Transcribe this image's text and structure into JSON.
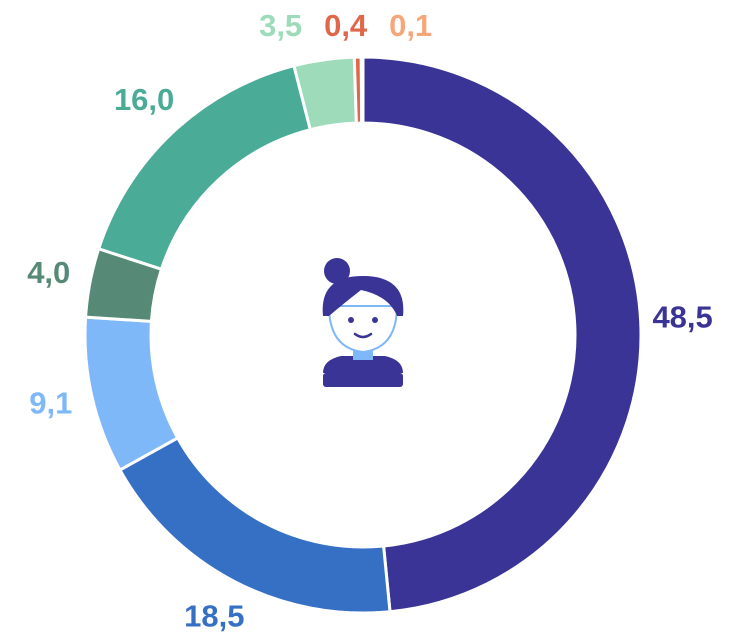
{
  "chart_data": {
    "type": "donut",
    "values": [
      48.5,
      18.5,
      9.1,
      4.0,
      16.0,
      3.5,
      0.4,
      0.1
    ],
    "value_labels": [
      "48,5",
      "18,5",
      "9,1",
      "4,0",
      "16,0",
      "3,5",
      "0,4",
      "0,1"
    ],
    "colors": [
      "#3a3496",
      "#3670c4",
      "#7fb8f9",
      "#568a76",
      "#4aab97",
      "#9edbbb",
      "#e0684a",
      "#f6a77a"
    ]
  }
}
